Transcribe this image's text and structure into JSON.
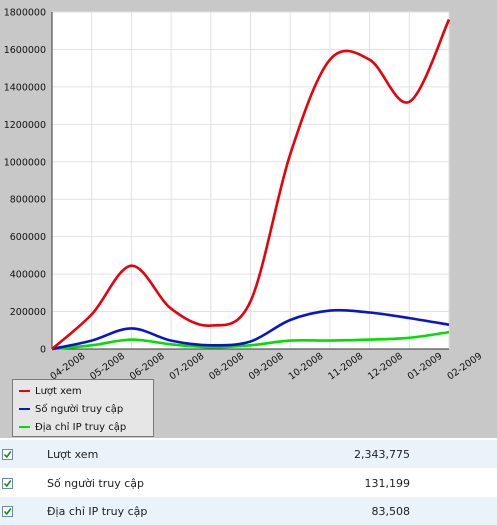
{
  "chart_data": {
    "type": "line",
    "categories": [
      "04-2008",
      "05-2008",
      "06-2008",
      "07-2008",
      "08-2008",
      "09-2008",
      "10-2008",
      "11-2008",
      "12-2008",
      "01-2009",
      "02-2009"
    ],
    "x": [
      "04-2008",
      "05-2008",
      "06-2008",
      "07-2008",
      "08-2008",
      "09-2008",
      "10-2008",
      "11-2008",
      "12-2008",
      "01-2009",
      "02-2009"
    ],
    "y_ticks": [
      "0",
      "200000",
      "400000",
      "600000",
      "800000",
      "1000000",
      "1200000",
      "1400000",
      "1600000",
      "1800000"
    ],
    "ylim": [
      0,
      1800000
    ],
    "grid": true,
    "legend_position": "bottom-left",
    "title": "",
    "xlabel": "",
    "ylabel": "",
    "series": [
      {
        "name": "Lượt xem",
        "color": "#e8000b",
        "values": [
          0,
          185000,
          445000,
          215000,
          125000,
          255000,
          1040000,
          1545000,
          1545000,
          1320000,
          1760000
        ]
      },
      {
        "name": "Số người truy cập",
        "color": "#0a14c8",
        "values": [
          0,
          45000,
          110000,
          45000,
          20000,
          40000,
          155000,
          205000,
          195000,
          165000,
          130000
        ]
      },
      {
        "name": "Địa chỉ IP truy cập",
        "color": "#00e000",
        "values": [
          0,
          20000,
          50000,
          25000,
          10000,
          20000,
          45000,
          45000,
          50000,
          60000,
          90000
        ]
      }
    ]
  },
  "stats": [
    {
      "label": "Lượt xem",
      "value": "2,343,775",
      "checked": true
    },
    {
      "label": "Số người truy cập",
      "value": "131,199",
      "checked": true
    },
    {
      "label": "Địa chỉ IP truy cập",
      "value": "83,508",
      "checked": true
    }
  ],
  "colors": {
    "accent": "#e8000b",
    "panel": "#c8c8c8",
    "row_alt": "#eaf2fa"
  }
}
